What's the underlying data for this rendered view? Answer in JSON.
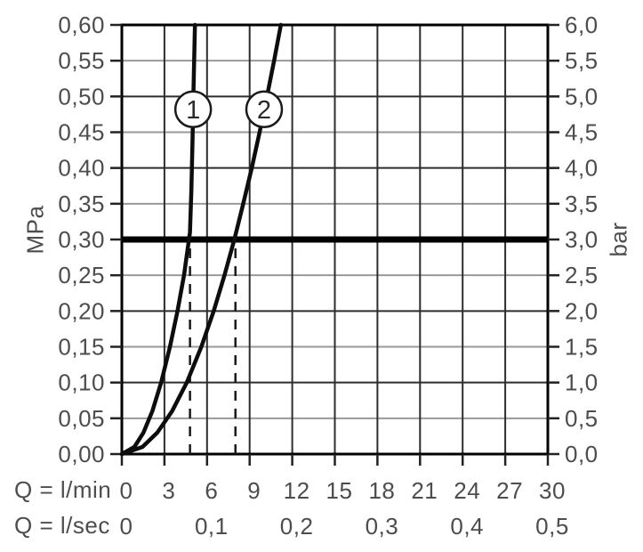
{
  "chart_data": {
    "type": "line",
    "title": "",
    "description": "Flow rate vs pressure performance diagram with two curves and a bold reference line at 0.30 MPa (3.0 bar)",
    "grid": true,
    "legend_position": "none",
    "y_left": {
      "label": "MPa",
      "min": 0,
      "max": 0.6,
      "tick_step": 0.05,
      "tick_labels": [
        "0,00",
        "0,05",
        "0,10",
        "0,15",
        "0,20",
        "0,25",
        "0,30",
        "0,35",
        "0,40",
        "0,45",
        "0,50",
        "0,55",
        "0,60"
      ]
    },
    "y_right": {
      "label": "bar",
      "min": 0,
      "max": 6.0,
      "tick_step": 0.5,
      "tick_labels": [
        "0,0",
        "0,5",
        "1,0",
        "1,5",
        "2,0",
        "2,5",
        "3,0",
        "3,5",
        "4,0",
        "4,5",
        "5,0",
        "5,5",
        "6,0"
      ]
    },
    "x_lmin": {
      "label": "Q = l/min",
      "min": 0,
      "max": 30,
      "tick_step": 3,
      "tick_labels": [
        "0",
        "3",
        "6",
        "9",
        "12",
        "15",
        "18",
        "21",
        "24",
        "27",
        "30"
      ]
    },
    "x_lsec": {
      "label": "Q = l/sec",
      "ticks": [
        {
          "q_lmin": 0,
          "label": "0"
        },
        {
          "q_lmin": 6,
          "label": "0,1"
        },
        {
          "q_lmin": 12,
          "label": "0,2"
        },
        {
          "q_lmin": 18,
          "label": "0,3"
        },
        {
          "q_lmin": 24,
          "label": "0,4"
        },
        {
          "q_lmin": 30,
          "label": "0,5"
        }
      ]
    },
    "reference_line": {
      "p_mpa": 0.3,
      "p_bar": 3.0
    },
    "guide_lines_dashed": [
      {
        "q_lmin": 4.8,
        "from_p_mpa": 0,
        "to_p_mpa": 0.3
      },
      {
        "q_lmin": 8.0,
        "from_p_mpa": 0,
        "to_p_mpa": 0.3
      }
    ],
    "series": [
      {
        "name": "1",
        "points_q_p": [
          [
            0,
            0
          ],
          [
            0.88,
            0.01
          ],
          [
            1.52,
            0.03
          ],
          [
            2.15,
            0.06
          ],
          [
            2.77,
            0.1
          ],
          [
            3.39,
            0.15
          ],
          [
            3.92,
            0.2
          ],
          [
            4.38,
            0.25
          ],
          [
            4.8,
            0.31
          ],
          [
            4.9,
            0.37
          ],
          [
            4.98,
            0.44
          ],
          [
            5.05,
            0.51
          ],
          [
            5.15,
            0.6
          ]
        ],
        "q_at_reference_lmin": 4.8
      },
      {
        "name": "2",
        "points_q_p": [
          [
            0,
            0
          ],
          [
            1.45,
            0.01
          ],
          [
            2.5,
            0.03
          ],
          [
            3.54,
            0.06
          ],
          [
            4.57,
            0.1
          ],
          [
            5.6,
            0.15
          ],
          [
            6.47,
            0.2
          ],
          [
            7.23,
            0.25
          ],
          [
            7.92,
            0.3
          ],
          [
            8.55,
            0.35
          ],
          [
            9.15,
            0.4
          ],
          [
            9.7,
            0.45
          ],
          [
            10.22,
            0.5
          ],
          [
            10.72,
            0.55
          ],
          [
            11.2,
            0.6
          ]
        ],
        "q_at_reference_lmin": 8.0
      }
    ],
    "series_markers": [
      {
        "label": "1",
        "q_lmin": 5.02,
        "p_mpa": 0.482
      },
      {
        "label": "2",
        "q_lmin": 10.02,
        "p_mpa": 0.482
      }
    ],
    "colors": {
      "background": "#ffffff",
      "grid_major": "#2d2d2d",
      "grid_minor": "#999999",
      "border": "#000000",
      "tick": "#222222",
      "curve": "#0d0d0d",
      "reference_line": "#000000",
      "guide_line": "#1a1a1a",
      "label_text": "#4d4d4d",
      "marker_fill": "#ffffff",
      "marker_stroke": "#1a1a1a"
    }
  }
}
